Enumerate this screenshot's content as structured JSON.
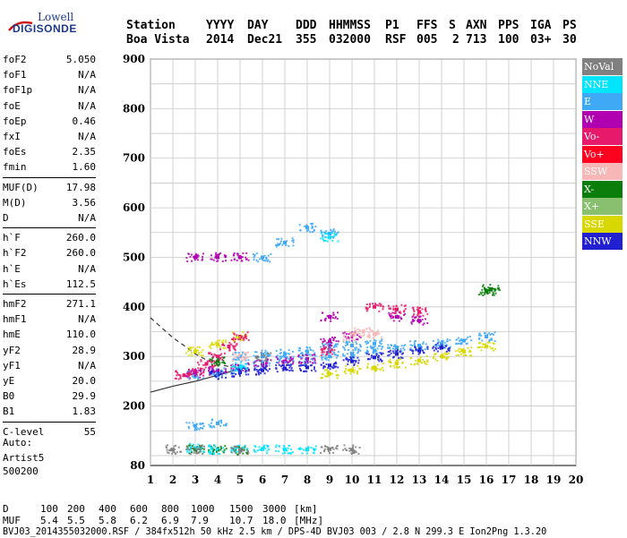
{
  "logo": {
    "line1": "Lowell",
    "line2": "DIGISONDE"
  },
  "header": {
    "labels": [
      "Station",
      "YYYY",
      "DAY",
      "DDD",
      "HHMMSS",
      "P1",
      "FFS",
      "S",
      "AXN",
      "PPS",
      "IGA",
      "PS"
    ],
    "values": [
      "Boa Vista",
      "2014",
      "Dec21",
      "355",
      "032000",
      "RSF",
      "005",
      "2",
      "713",
      "100",
      "03+",
      "30"
    ]
  },
  "params_group1": [
    {
      "name": "foF2",
      "value": "5.050"
    },
    {
      "name": "foF1",
      "value": "N/A"
    },
    {
      "name": "foF1p",
      "value": "N/A"
    },
    {
      "name": "foE",
      "value": "N/A"
    },
    {
      "name": "foEp",
      "value": "0.46"
    },
    {
      "name": "fxI",
      "value": "N/A"
    },
    {
      "name": "foEs",
      "value": "2.35"
    },
    {
      "name": "fmin",
      "value": "1.60"
    }
  ],
  "params_group2": [
    {
      "name": "MUF(D)",
      "value": "17.98"
    },
    {
      "name": "M(D)",
      "value": "3.56"
    },
    {
      "name": "D",
      "value": "N/A"
    }
  ],
  "params_group3": [
    {
      "name": "h`F",
      "value": "260.0"
    },
    {
      "name": "h`F2",
      "value": "260.0"
    },
    {
      "name": "h`E",
      "value": "N/A"
    },
    {
      "name": "h`Es",
      "value": "112.5"
    }
  ],
  "params_group4": [
    {
      "name": "hmF2",
      "value": "271.1"
    },
    {
      "name": "hmF1",
      "value": "N/A"
    },
    {
      "name": "hmE",
      "value": "110.0"
    },
    {
      "name": "yF2",
      "value": "28.9"
    },
    {
      "name": "yF1",
      "value": "N/A"
    },
    {
      "name": "yE",
      "value": "20.0"
    },
    {
      "name": "B0",
      "value": "29.9"
    },
    {
      "name": "B1",
      "value": "1.83"
    }
  ],
  "params_group5": [
    {
      "name": "C-level",
      "value": "55"
    }
  ],
  "auto": {
    "line1": "Auto:",
    "line2": "Artist5",
    "line3": "500200"
  },
  "legend": [
    {
      "label": "NoVal",
      "color": "#808080"
    },
    {
      "label": "NNE",
      "color": "#00e5ff"
    },
    {
      "label": "E",
      "color": "#3fa9f5"
    },
    {
      "label": "W",
      "color": "#b000b0"
    },
    {
      "label": "Vo-",
      "color": "#e6196b"
    },
    {
      "label": "Vo+",
      "color": "#ff0020"
    },
    {
      "label": "SSW",
      "color": "#f7b7b7"
    },
    {
      "label": "X-",
      "color": "#0a7d0a"
    },
    {
      "label": "X+",
      "color": "#88c070"
    },
    {
      "label": "SSE",
      "color": "#d8d800"
    },
    {
      "label": "NNW",
      "color": "#2020d0"
    }
  ],
  "footer": {
    "d_label": "D",
    "d_values": [
      "100",
      "200",
      "400",
      "600",
      "800",
      "1000",
      "1500",
      "3000",
      "[km]"
    ],
    "muf_label": "MUF",
    "muf_values": [
      "5.4",
      "5.5",
      "5.8",
      "6.2",
      "6.9",
      "7.9",
      "10.7",
      "18.0",
      "[MHz]"
    ],
    "info": "BVJ03_2014355032000.RSF / 384fx512h 50 kHz 2.5 km / DPS-4D BVJ03 003 / 2.8 N 299.3 E Ion2Png 1.3.20"
  },
  "chart_data": {
    "type": "scatter",
    "title": "",
    "xlabel": "",
    "ylabel": "",
    "xlim": [
      1,
      20
    ],
    "ylim": [
      80,
      900
    ],
    "x_ticks": [
      1,
      2,
      3,
      4,
      5,
      6,
      7,
      8,
      9,
      10,
      11,
      12,
      13,
      14,
      15,
      16,
      17,
      18,
      19,
      20
    ],
    "y_ticks": [
      80,
      200,
      300,
      400,
      500,
      600,
      700,
      800,
      900
    ],
    "grid": true,
    "legend_position": "right",
    "series": [
      {
        "name": "E",
        "color": "#3fa9f5",
        "points": [
          [
            3,
            262
          ],
          [
            4,
            268
          ],
          [
            5,
            275
          ],
          [
            6,
            283
          ],
          [
            7,
            290
          ],
          [
            8,
            295
          ],
          [
            9,
            300
          ],
          [
            10,
            305
          ],
          [
            11,
            312
          ],
          [
            12,
            318
          ],
          [
            13,
            322
          ],
          [
            14,
            326
          ],
          [
            15,
            332
          ],
          [
            16,
            340
          ],
          [
            5,
            300
          ],
          [
            6,
            304
          ],
          [
            7,
            305
          ],
          [
            8,
            310
          ],
          [
            9,
            318
          ],
          [
            10,
            322
          ],
          [
            11,
            326
          ],
          [
            3,
            160
          ],
          [
            4,
            165
          ],
          [
            8,
            560
          ],
          [
            9,
            548
          ],
          [
            7,
            530
          ],
          [
            6,
            500
          ]
        ]
      },
      {
        "name": "SSE",
        "color": "#d8d800",
        "points": [
          [
            9,
            265
          ],
          [
            10,
            272
          ],
          [
            11,
            278
          ],
          [
            12,
            286
          ],
          [
            13,
            292
          ],
          [
            14,
            300
          ],
          [
            15,
            310
          ],
          [
            16,
            320
          ],
          [
            3,
            310
          ],
          [
            4,
            325
          ],
          [
            5,
            340
          ]
        ]
      },
      {
        "name": "W",
        "color": "#b000b0",
        "points": [
          [
            3,
            266
          ],
          [
            4,
            272
          ],
          [
            5,
            280
          ],
          [
            6,
            286
          ],
          [
            7,
            290
          ],
          [
            8,
            295
          ],
          [
            9,
            330
          ],
          [
            10,
            340
          ],
          [
            12,
            380
          ],
          [
            13,
            372
          ],
          [
            9,
            380
          ],
          [
            4,
            500
          ],
          [
            5,
            500
          ],
          [
            3,
            500
          ]
        ]
      },
      {
        "name": "NNW",
        "color": "#2020d0",
        "points": [
          [
            4,
            262
          ],
          [
            5,
            268
          ],
          [
            6,
            272
          ],
          [
            7,
            276
          ],
          [
            8,
            278
          ],
          [
            9,
            282
          ],
          [
            10,
            290
          ],
          [
            11,
            298
          ],
          [
            12,
            305
          ],
          [
            13,
            312
          ],
          [
            14,
            318
          ]
        ]
      },
      {
        "name": "Vo-",
        "color": "#e6196b",
        "points": [
          [
            2.5,
            262
          ],
          [
            3,
            270
          ],
          [
            3.5,
            285
          ],
          [
            4,
            300
          ],
          [
            4.5,
            320
          ],
          [
            5,
            340
          ],
          [
            9,
            310
          ],
          [
            11,
            400
          ],
          [
            12,
            395
          ],
          [
            13,
            390
          ]
        ]
      },
      {
        "name": "SSW",
        "color": "#f7b7b7",
        "points": [
          [
            10,
            340
          ],
          [
            11,
            345
          ],
          [
            10.5,
            350
          ],
          [
            5,
            300
          ]
        ]
      },
      {
        "name": "X-",
        "color": "#0a7d0a",
        "points": [
          [
            16,
            432
          ],
          [
            16.2,
            436
          ],
          [
            3,
            112
          ],
          [
            4,
            112
          ],
          [
            5,
            110
          ],
          [
            4,
            290
          ]
        ]
      },
      {
        "name": "NNE",
        "color": "#00e5ff",
        "points": [
          [
            4,
            112
          ],
          [
            5,
            112
          ],
          [
            6,
            113
          ],
          [
            7,
            112
          ],
          [
            8,
            112
          ],
          [
            3,
            115
          ],
          [
            5,
            280
          ],
          [
            9,
            540
          ]
        ]
      },
      {
        "name": "NoVal",
        "color": "#808080",
        "points": [
          [
            2,
            112
          ],
          [
            3,
            112
          ],
          [
            5,
            112
          ],
          [
            9,
            113
          ],
          [
            10,
            112
          ],
          [
            6,
            300
          ]
        ]
      }
    ]
  }
}
